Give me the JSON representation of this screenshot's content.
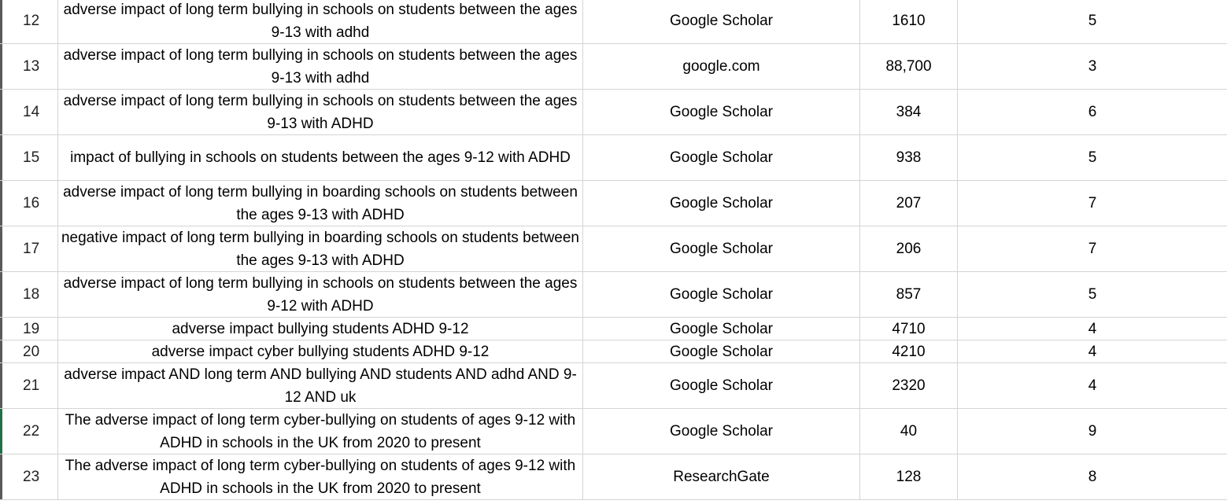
{
  "rows": [
    {
      "num": "12",
      "query": "adverse impact of long term bullying in schools on students between the ages 9-13 with adhd",
      "source": "Google Scholar",
      "results": "1610",
      "relevant": "5",
      "height": "tall"
    },
    {
      "num": "13",
      "query": "adverse impact of long term bullying in schools on students between the ages 9-13 with adhd",
      "source": "google.com",
      "results": "88,700",
      "relevant": "3",
      "height": "tall"
    },
    {
      "num": "14",
      "query": "adverse impact of long term bullying in schools on students between the ages 9-13 with ADHD",
      "source": "Google Scholar",
      "results": "384",
      "relevant": "6",
      "height": "tall"
    },
    {
      "num": "15",
      "query": "impact of bullying in schools on students between the ages 9-12 with ADHD",
      "source": "Google Scholar",
      "results": "938",
      "relevant": "5",
      "height": "tall"
    },
    {
      "num": "16",
      "query": "adverse impact of long term bullying in boarding schools on students between the ages 9-13 with ADHD",
      "source": "Google Scholar",
      "results": "207",
      "relevant": "7",
      "height": "tall"
    },
    {
      "num": "17",
      "query": "negative impact of long term bullying in boarding schools on students between the ages 9-13 with ADHD",
      "source": "Google Scholar",
      "results": "206",
      "relevant": "7",
      "height": "tall"
    },
    {
      "num": "18",
      "query": "adverse impact of long term bullying in schools on students between the ages 9-12 with ADHD",
      "source": "Google Scholar",
      "results": "857",
      "relevant": "5",
      "height": "tall"
    },
    {
      "num": "19",
      "query": "adverse impact bullying students ADHD 9-12",
      "source": "Google Scholar",
      "results": "4710",
      "relevant": "4",
      "height": "short"
    },
    {
      "num": "20",
      "query": "adverse impact cyber bullying students ADHD 9-12",
      "source": "Google Scholar",
      "results": "4210",
      "relevant": "4",
      "height": "short"
    },
    {
      "num": "21",
      "query": "adverse impact AND long term AND bullying AND students AND adhd AND 9-12 AND uk",
      "source": "Google Scholar",
      "results": "2320",
      "relevant": "4",
      "height": "tall"
    },
    {
      "num": "22",
      "query": "The adverse impact of long term cyber-bullying on students of ages 9-12 with ADHD in schools in the UK from 2020 to present",
      "source": "Google Scholar",
      "results": "40",
      "relevant": "9",
      "height": "tall",
      "selected": true
    },
    {
      "num": "23",
      "query": "The adverse impact of long term cyber-bullying on students of ages 9-12 with ADHD in schools in the UK from 2020 to present",
      "source": "ResearchGate",
      "results": "128",
      "relevant": "8",
      "height": "tall"
    }
  ]
}
